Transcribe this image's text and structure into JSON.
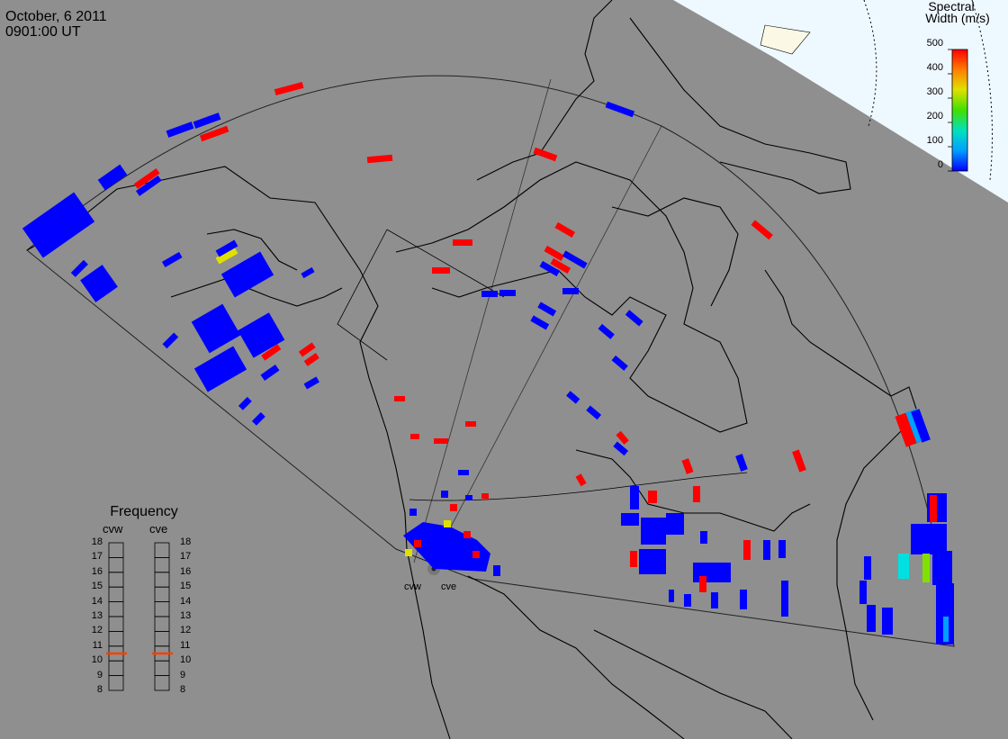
{
  "header": {
    "date": "October, 6 2011",
    "time": "0901:00 UT"
  },
  "stations": [
    {
      "code": "cvw"
    },
    {
      "code": "cve"
    }
  ],
  "colorbar": {
    "title_line1": "Spectral",
    "title_line2": "Width (m/s)",
    "min": 0,
    "max": 500,
    "ticks": [
      "500",
      "400",
      "300",
      "200",
      "100",
      "0"
    ],
    "gradient": [
      "#0000ff",
      "#00a0ff",
      "#00e0c0",
      "#40e000",
      "#e0e000",
      "#ff8000",
      "#ff0000"
    ]
  },
  "frequency_panel": {
    "title": "Frequency",
    "columns": [
      {
        "station": "cvw",
        "value_mhz": 10.5,
        "marker_color": "#ff4000"
      },
      {
        "station": "cve",
        "value_mhz": 10.5,
        "marker_color": "#ff4000"
      }
    ],
    "scale": [
      "18",
      "17",
      "16",
      "15",
      "14",
      "13",
      "12",
      "11",
      "10",
      "9",
      "8"
    ]
  },
  "colors": {
    "background": "#8f8f8f",
    "daylight": "#eef8ff",
    "scatter_low": "#0000ff",
    "scatter_high": "#ff0000"
  }
}
